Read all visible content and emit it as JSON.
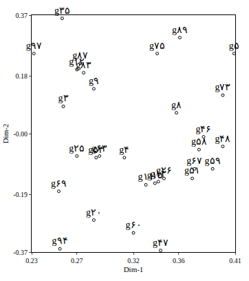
{
  "chart_data": {
    "type": "scatter",
    "x_label": "Dim-1",
    "y_label": "Dim-2",
    "labels": [
      "g۳۵",
      "g۹۷",
      "g۸۹",
      "g۷۵",
      "g۵",
      "g۱۲",
      "g۸۷",
      "g۸۳",
      "g۹",
      "g۳",
      "g۷۳",
      "g۸",
      "g۴۶",
      "g۴۸",
      "g۵۸",
      "g۲۵",
      "g۵۳",
      "g۶۳",
      "g۴",
      "g۶۷",
      "g۵۹",
      "g۵۱",
      "g۲۶",
      "g۱۳",
      "g۱۵",
      "g۱۱",
      "g۶۹",
      "g۲۰",
      "g۶۰",
      "g۹۴",
      "g۴۷"
    ],
    "x": [
      0.257,
      0.232,
      0.361,
      0.341,
      0.409,
      0.27,
      0.273,
      0.276,
      0.285,
      0.258,
      0.399,
      0.358,
      0.382,
      0.399,
      0.378,
      0.27,
      0.287,
      0.29,
      0.312,
      0.374,
      0.39,
      0.372,
      0.347,
      0.342,
      0.339,
      0.331,
      0.254,
      0.285,
      0.32,
      0.255,
      0.344
    ],
    "y": [
      0.36,
      0.25,
      0.3,
      0.25,
      0.25,
      0.2,
      0.22,
      0.19,
      0.14,
      0.085,
      0.12,
      0.065,
      -0.01,
      -0.04,
      -0.05,
      -0.07,
      -0.075,
      -0.07,
      -0.075,
      -0.11,
      -0.11,
      -0.14,
      -0.14,
      -0.15,
      -0.155,
      -0.16,
      -0.18,
      -0.27,
      -0.31,
      -0.36,
      -0.365
    ],
    "xlim": [
      0.23,
      0.41
    ],
    "xticks": [
      0.23,
      0.27,
      0.32,
      0.36,
      0.41
    ],
    "ylim": [
      -0.37,
      0.37
    ],
    "yticks": [
      -0.37,
      -0.19,
      {
        "value": 0,
        "label": "-0.00"
      },
      0.18,
      0.37
    ],
    "color": "#000000",
    "marker": "circle-open",
    "grid": false
  }
}
